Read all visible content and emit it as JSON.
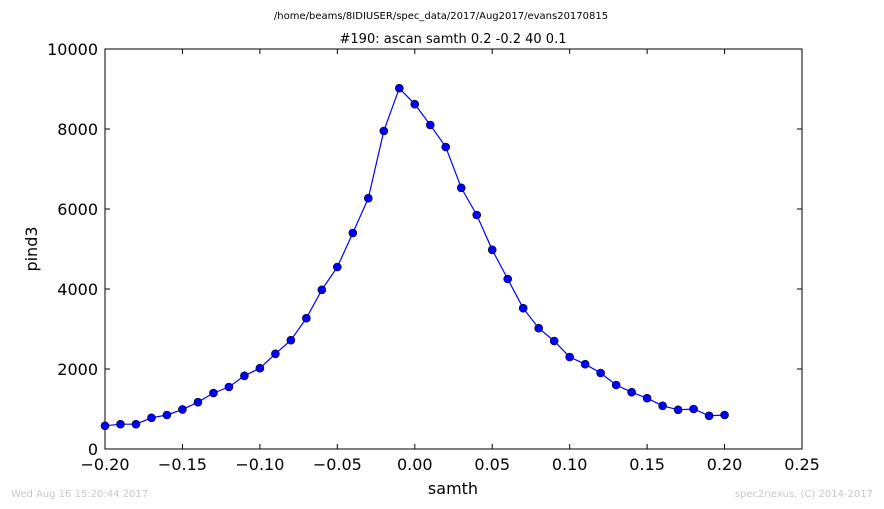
{
  "path_title": "/home/beams/8IDIUSER/spec_data/2017/Aug2017/evans20170815",
  "footer": {
    "timestamp": "Wed Aug 16 15:20:44 2017",
    "credit": "spec2nexus, (C) 2014-2017"
  },
  "colors": {
    "series": "#0000ff"
  },
  "chart_data": {
    "type": "line",
    "title": "#190: ascan  samth 0.2 -0.2  40 0.1",
    "xlabel": "samth",
    "ylabel": "pind3",
    "xlim": [
      -0.2,
      0.25
    ],
    "ylim": [
      0,
      10000
    ],
    "xticks": [
      -0.2,
      -0.15,
      -0.1,
      -0.05,
      0.0,
      0.05,
      0.1,
      0.15,
      0.2,
      0.25
    ],
    "xtick_labels": [
      "−0.20",
      "−0.15",
      "−0.10",
      "−0.05",
      "0.00",
      "0.05",
      "0.10",
      "0.15",
      "0.20",
      "0.25"
    ],
    "yticks": [
      0,
      2000,
      4000,
      6000,
      8000,
      10000
    ],
    "ytick_labels": [
      "0",
      "2000",
      "4000",
      "6000",
      "8000",
      "10000"
    ],
    "grid": false,
    "x": [
      -0.2,
      -0.19,
      -0.18,
      -0.17,
      -0.16,
      -0.15,
      -0.14,
      -0.13,
      -0.12,
      -0.11,
      -0.1,
      -0.09,
      -0.08,
      -0.07,
      -0.06,
      -0.05,
      -0.04,
      -0.03,
      -0.02,
      -0.01,
      0.0,
      0.01,
      0.02,
      0.03,
      0.04,
      0.05,
      0.06,
      0.07,
      0.08,
      0.09,
      0.1,
      0.11,
      0.12,
      0.13,
      0.14,
      0.15,
      0.16,
      0.17,
      0.18,
      0.19,
      0.2
    ],
    "y": [
      580,
      620,
      620,
      780,
      850,
      990,
      1170,
      1400,
      1550,
      1830,
      2020,
      2380,
      2720,
      3270,
      3980,
      4550,
      5400,
      6270,
      7950,
      9020,
      8620,
      8100,
      7550,
      6530,
      5850,
      4980,
      4250,
      3520,
      3020,
      2700,
      2300,
      2120,
      1900,
      1600,
      1420,
      1270,
      1080,
      980,
      1000,
      830,
      850
    ]
  }
}
